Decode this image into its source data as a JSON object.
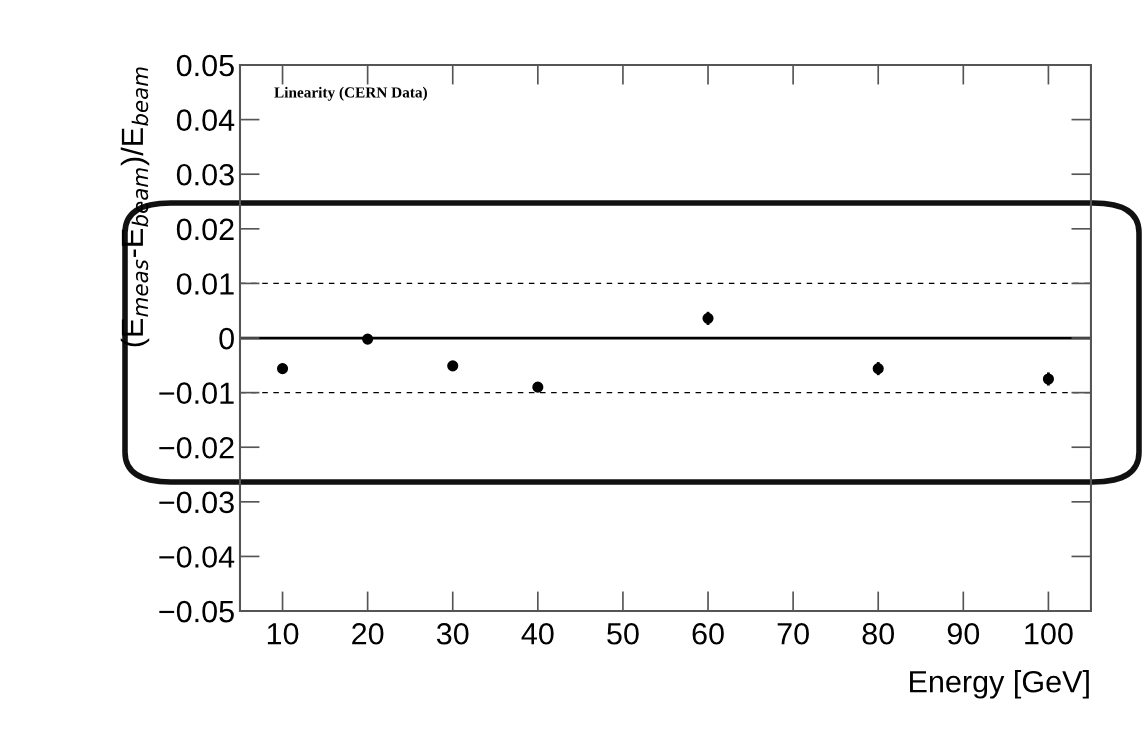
{
  "chart_data": {
    "type": "scatter",
    "xlabel": "Energy [GeV]",
    "ylabel": "(E$_{meas}$-E$_{beam}$)/E$_{beam}$",
    "annotations": [
      "Linearity (CERN Data)"
    ],
    "x": [
      10,
      20,
      30,
      40,
      60,
      80,
      100
    ],
    "series": [
      {
        "color": "#000000",
        "values": [
          -0.0056,
          -0.0002,
          -0.0051,
          -0.009,
          0.0036,
          -0.0056,
          -0.0075
        ],
        "errors": [
          null,
          null,
          null,
          null,
          0.0012,
          0.0012,
          0.0012
        ]
      }
    ],
    "marker": "circle",
    "xlim": [
      5,
      105
    ],
    "xticks": [
      10,
      20,
      30,
      40,
      50,
      60,
      70,
      80,
      90,
      100
    ],
    "ylim": [
      -0.05,
      0.05
    ],
    "yticks": [
      {
        "value": -0.05,
        "label": "−0.05"
      },
      {
        "value": -0.04,
        "label": "−0.04"
      },
      {
        "value": -0.03,
        "label": "−0.03"
      },
      {
        "value": -0.02,
        "label": "−0.02"
      },
      {
        "value": -0.01,
        "label": "−0.01"
      },
      0,
      0.01,
      0.02,
      0.03,
      0.04,
      0.05
    ],
    "ref_lines": [
      {
        "axis": "y",
        "value": 0,
        "line_style": "solid",
        "color": "#000000"
      },
      {
        "axis": "y",
        "value": 0.01,
        "line_style": "dashed",
        "color": "#000000"
      },
      {
        "axis": "y",
        "value": -0.01,
        "line_style": "dashed",
        "color": "#000000"
      }
    ],
    "grid": false,
    "legend": false
  }
}
